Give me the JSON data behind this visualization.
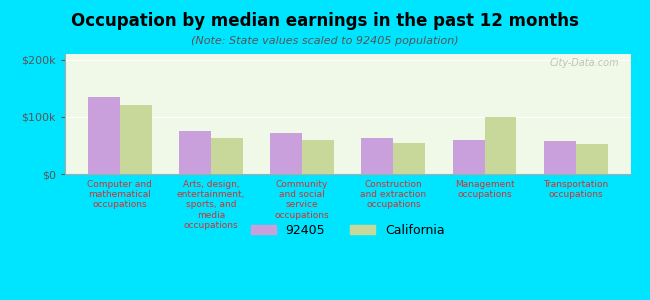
{
  "title": "Occupation by median earnings in the past 12 months",
  "subtitle": "(Note: State values scaled to 92405 population)",
  "categories": [
    "Computer and\nmathematical\noccupations",
    "Arts, design,\nentertainment,\nsports, and\nmedia\noccupations",
    "Community\nand social\nservice\noccupations",
    "Construction\nand extraction\noccupations",
    "Management\noccupations",
    "Transportation\noccupations"
  ],
  "values_92405": [
    135000,
    75000,
    72000,
    63000,
    60000,
    57000
  ],
  "values_california": [
    120000,
    63000,
    60000,
    55000,
    100000,
    53000
  ],
  "color_92405": "#c9a0dc",
  "color_california": "#c8d89a",
  "background_plot": "#f0f8e8",
  "background_fig": "#00e5ff",
  "ylim": [
    0,
    210000
  ],
  "ytick_labels": [
    "$0",
    "$100k",
    "$200k"
  ],
  "legend_92405": "92405",
  "legend_california": "California",
  "watermark": "City-Data.com"
}
